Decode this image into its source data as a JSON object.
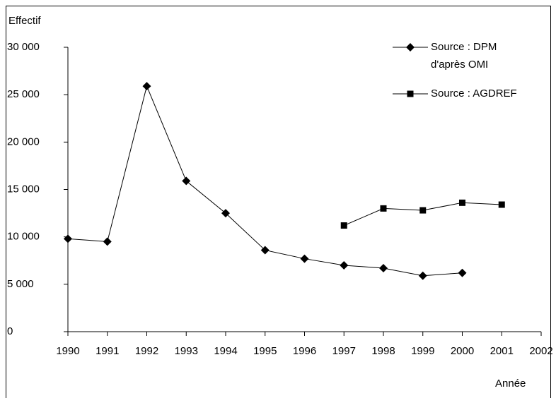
{
  "chart_data": {
    "type": "line",
    "y_label": "Effectif",
    "x_label": "Année",
    "x": [
      1990,
      1991,
      1992,
      1993,
      1994,
      1995,
      1996,
      1997,
      1998,
      1999,
      2000,
      2001
    ],
    "series": [
      {
        "name": "Source : DPM\nd'après OMI",
        "color": "#000000",
        "marker": "diamond",
        "values": [
          9800,
          9500,
          25900,
          15900,
          12500,
          8600,
          7700,
          7000,
          6700,
          5900,
          6200,
          null
        ]
      },
      {
        "name": "Source : AGDREF",
        "color": "#000000",
        "marker": "square",
        "values": [
          null,
          null,
          null,
          null,
          null,
          null,
          null,
          11200,
          13000,
          12800,
          13600,
          13400
        ]
      }
    ],
    "xlim": [
      1990,
      2002
    ],
    "xticks": [
      1990,
      1991,
      1992,
      1993,
      1994,
      1995,
      1996,
      1997,
      1998,
      1999,
      2000,
      2001,
      2002
    ],
    "ylim": [
      0,
      30000
    ],
    "yticks": [
      0,
      {
        "value": 5000,
        "label": "5 000"
      },
      {
        "value": 10000,
        "label": "10 000"
      },
      {
        "value": 15000,
        "label": "15 000"
      },
      {
        "value": 20000,
        "label": "20 000"
      },
      {
        "value": 25000,
        "label": "25 000"
      },
      {
        "value": 30000,
        "label": "30 000"
      }
    ],
    "grid": false,
    "legend": "upper right"
  }
}
